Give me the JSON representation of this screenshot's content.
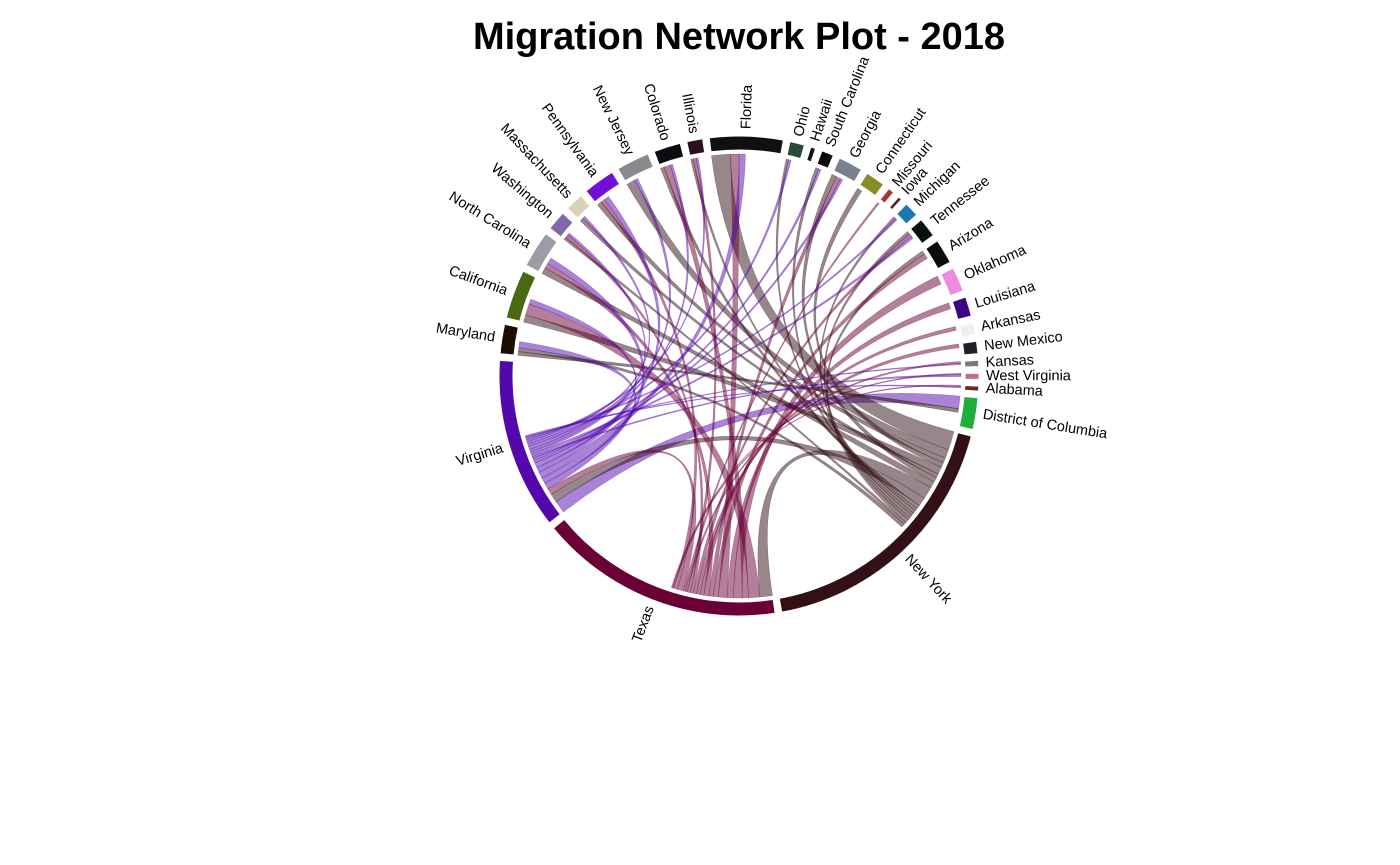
{
  "chart_data": {
    "type": "chord",
    "title": "Migration Network Plot - 2018",
    "sectors": [
      {
        "name": "District of Columbia",
        "value": 2.6,
        "color": "#1fae3c"
      },
      {
        "name": "New York",
        "value": 22.0,
        "color": "#321015"
      },
      {
        "name": "Texas",
        "value": 20.0,
        "color": "#6a0036"
      },
      {
        "name": "Virginia",
        "value": 14.0,
        "color": "#5408ac"
      },
      {
        "name": "Maryland",
        "value": 2.4,
        "color": "#1e0c00"
      },
      {
        "name": "California",
        "value": 4.0,
        "color": "#4a6a12"
      },
      {
        "name": "North Carolina",
        "value": 3.0,
        "color": "#9a9ca6"
      },
      {
        "name": "Washington",
        "value": 1.6,
        "color": "#8069a8"
      },
      {
        "name": "Massachusetts",
        "value": 1.5,
        "color": "#d8d3b8"
      },
      {
        "name": "Pennsylvania",
        "value": 2.6,
        "color": "#7310d8"
      },
      {
        "name": "New Jersey",
        "value": 2.7,
        "color": "#8a8a8e"
      },
      {
        "name": "Colorado",
        "value": 2.2,
        "color": "#0d0b10"
      },
      {
        "name": "Illinois",
        "value": 1.3,
        "color": "#2c0f1c"
      },
      {
        "name": "Florida",
        "value": 6.0,
        "color": "#101012"
      },
      {
        "name": "Ohio",
        "value": 1.2,
        "color": "#2a4a3a"
      },
      {
        "name": "Hawaii",
        "value": 0.4,
        "color": "#141414"
      },
      {
        "name": "South Carolina",
        "value": 1.0,
        "color": "#0a0a0a"
      },
      {
        "name": "Georgia",
        "value": 2.0,
        "color": "#7a808c"
      },
      {
        "name": "Connecticut",
        "value": 1.6,
        "color": "#8a8a28"
      },
      {
        "name": "Missouri",
        "value": 0.5,
        "color": "#a03c3c"
      },
      {
        "name": "Iowa",
        "value": 0.3,
        "color": "#4a2a2a"
      },
      {
        "name": "Michigan",
        "value": 1.2,
        "color": "#1a78b0"
      },
      {
        "name": "Tennessee",
        "value": 1.6,
        "color": "#0c0f0f"
      },
      {
        "name": "Arizona",
        "value": 2.0,
        "color": "#0a0c0c"
      },
      {
        "name": "Oklahoma",
        "value": 2.0,
        "color": "#ec8ce0"
      },
      {
        "name": "Louisiana",
        "value": 1.6,
        "color": "#3c0480"
      },
      {
        "name": "Arkansas",
        "value": 1.0,
        "color": "#efefef"
      },
      {
        "name": "New Mexico",
        "value": 1.0,
        "color": "#202028"
      },
      {
        "name": "Kansas",
        "value": 0.5,
        "color": "#7a7a7e"
      },
      {
        "name": "West Virginia",
        "value": 0.5,
        "color": "#c07080"
      },
      {
        "name": "Alabama",
        "value": 0.4,
        "color": "#6a2a1a"
      }
    ],
    "links": [
      {
        "from": "Virginia",
        "to": "District of Columbia",
        "value": 2.0
      },
      {
        "from": "Maryland",
        "to": "District of Columbia",
        "value": 0.6
      },
      {
        "from": "New York",
        "to": "Florida",
        "value": 3.0
      },
      {
        "from": "New York",
        "to": "New Jersey",
        "value": 1.4
      },
      {
        "from": "New York",
        "to": "Pennsylvania",
        "value": 0.8
      },
      {
        "from": "New York",
        "to": "Connecticut",
        "value": 0.8
      },
      {
        "from": "New York",
        "to": "California",
        "value": 1.2
      },
      {
        "from": "New York",
        "to": "Massachusetts",
        "value": 0.6
      },
      {
        "from": "New York",
        "to": "Georgia",
        "value": 0.8
      },
      {
        "from": "New York",
        "to": "North Carolina",
        "value": 1.0
      },
      {
        "from": "New York",
        "to": "Texas",
        "value": 2.0
      },
      {
        "from": "New York",
        "to": "Virginia",
        "value": 1.4
      },
      {
        "from": "New York",
        "to": "Colorado",
        "value": 0.6
      },
      {
        "from": "New York",
        "to": "Illinois",
        "value": 0.4
      },
      {
        "from": "New York",
        "to": "South Carolina",
        "value": 0.5
      },
      {
        "from": "New York",
        "to": "Ohio",
        "value": 0.4
      },
      {
        "from": "New York",
        "to": "Tennessee",
        "value": 0.5
      },
      {
        "from": "New York",
        "to": "Michigan",
        "value": 0.4
      },
      {
        "from": "New York",
        "to": "Arizona",
        "value": 0.6
      },
      {
        "from": "New York",
        "to": "Washington",
        "value": 0.4
      },
      {
        "from": "New York",
        "to": "Maryland",
        "value": 0.6
      },
      {
        "from": "Texas",
        "to": "California",
        "value": 1.8
      },
      {
        "from": "Texas",
        "to": "Colorado",
        "value": 1.0
      },
      {
        "from": "Texas",
        "to": "Oklahoma",
        "value": 1.4
      },
      {
        "from": "Texas",
        "to": "Louisiana",
        "value": 1.0
      },
      {
        "from": "Texas",
        "to": "Florida",
        "value": 1.4
      },
      {
        "from": "Texas",
        "to": "Arizona",
        "value": 0.8
      },
      {
        "from": "Texas",
        "to": "Georgia",
        "value": 0.7
      },
      {
        "from": "Texas",
        "to": "North Carolina",
        "value": 0.8
      },
      {
        "from": "Texas",
        "to": "Arkansas",
        "value": 0.6
      },
      {
        "from": "Texas",
        "to": "New Mexico",
        "value": 0.6
      },
      {
        "from": "Texas",
        "to": "Tennessee",
        "value": 0.5
      },
      {
        "from": "Texas",
        "to": "Washington",
        "value": 0.5
      },
      {
        "from": "Texas",
        "to": "Illinois",
        "value": 0.5
      },
      {
        "from": "Texas",
        "to": "Kansas",
        "value": 0.3
      },
      {
        "from": "Texas",
        "to": "Missouri",
        "value": 0.3
      },
      {
        "from": "Texas",
        "to": "Virginia",
        "value": 1.0
      },
      {
        "from": "Texas",
        "to": "Pennsylvania",
        "value": 0.6
      },
      {
        "from": "Texas",
        "to": "Alabama",
        "value": 0.2
      },
      {
        "from": "Texas",
        "to": "West Virginia",
        "value": 0.2
      },
      {
        "from": "Virginia",
        "to": "North Carolina",
        "value": 1.0
      },
      {
        "from": "Virginia",
        "to": "Maryland",
        "value": 1.0
      },
      {
        "from": "Virginia",
        "to": "Florida",
        "value": 1.0
      },
      {
        "from": "Virginia",
        "to": "Pennsylvania",
        "value": 0.8
      },
      {
        "from": "Virginia",
        "to": "California",
        "value": 0.8
      },
      {
        "from": "Virginia",
        "to": "Georgia",
        "value": 0.4
      },
      {
        "from": "Virginia",
        "to": "South Carolina",
        "value": 0.4
      },
      {
        "from": "Virginia",
        "to": "West Virginia",
        "value": 0.3
      },
      {
        "from": "Virginia",
        "to": "Tennessee",
        "value": 0.4
      },
      {
        "from": "Virginia",
        "to": "Washington",
        "value": 0.4
      },
      {
        "from": "Virginia",
        "to": "Colorado",
        "value": 0.4
      },
      {
        "from": "Virginia",
        "to": "New Jersey",
        "value": 0.5
      },
      {
        "from": "Virginia",
        "to": "Ohio",
        "value": 0.4
      },
      {
        "from": "Virginia",
        "to": "Massachusetts",
        "value": 0.4
      },
      {
        "from": "Virginia",
        "to": "Illinois",
        "value": 0.3
      },
      {
        "from": "Virginia",
        "to": "Michigan",
        "value": 0.3
      },
      {
        "from": "Virginia",
        "to": "Kansas",
        "value": 0.2
      },
      {
        "from": "Virginia",
        "to": "Alabama",
        "value": 0.2
      }
    ]
  }
}
